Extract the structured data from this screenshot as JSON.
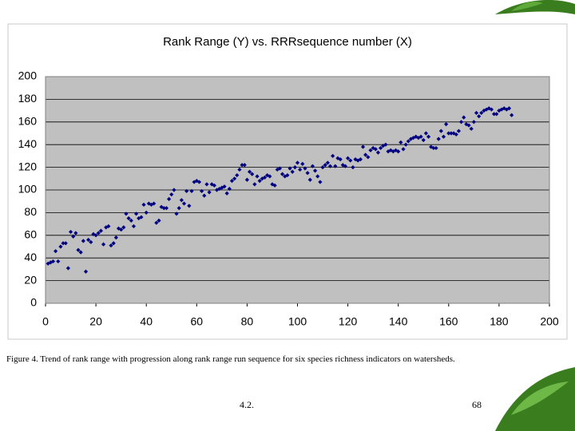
{
  "chart_data": {
    "type": "scatter",
    "title": "Rank Range (Y) vs. RRRsequence number (X)",
    "color": "#000080",
    "grid": true,
    "xlim": [
      0,
      200
    ],
    "xticks": [
      0,
      20,
      40,
      60,
      80,
      100,
      120,
      140,
      160,
      180,
      200
    ],
    "ylim": [
      0,
      200
    ],
    "yticks": [
      0,
      20,
      40,
      60,
      80,
      100,
      120,
      140,
      160,
      180,
      200
    ],
    "x": [
      1,
      2,
      3,
      4,
      5,
      6,
      7,
      8,
      9,
      10,
      11,
      12,
      13,
      14,
      15,
      16,
      17,
      18,
      19,
      20,
      21,
      22,
      23,
      24,
      25,
      26,
      27,
      28,
      29,
      30,
      31,
      32,
      33,
      34,
      35,
      36,
      37,
      38,
      39,
      40,
      41,
      42,
      43,
      44,
      45,
      46,
      47,
      48,
      49,
      50,
      51,
      52,
      53,
      54,
      55,
      56,
      57,
      58,
      59,
      60,
      61,
      62,
      63,
      64,
      65,
      66,
      67,
      68,
      69,
      70,
      71,
      72,
      73,
      74,
      75,
      76,
      77,
      78,
      79,
      80,
      81,
      82,
      83,
      84,
      85,
      86,
      87,
      88,
      89,
      90,
      91,
      92,
      93,
      94,
      95,
      96,
      97,
      98,
      99,
      100,
      101,
      102,
      103,
      104,
      105,
      106,
      107,
      108,
      109,
      110,
      111,
      112,
      113,
      114,
      115,
      116,
      117,
      118,
      119,
      120,
      121,
      122,
      123,
      124,
      125,
      126,
      127,
      128,
      129,
      130,
      131,
      132,
      133,
      134,
      135,
      136,
      137,
      138,
      139,
      140,
      141,
      142,
      143,
      144,
      145,
      146,
      147,
      148,
      149,
      150,
      151,
      152,
      153,
      154,
      155,
      156,
      157,
      158,
      159,
      160,
      161,
      162,
      163,
      164,
      165,
      166,
      167,
      168,
      169,
      170,
      171,
      172,
      173,
      174,
      175,
      176,
      177,
      178,
      179,
      180,
      181,
      182,
      183,
      184,
      185
    ],
    "values": [
      35,
      36,
      37,
      46,
      37,
      50,
      53,
      53,
      31,
      63,
      59,
      62,
      47,
      45,
      55,
      28,
      56,
      54,
      61,
      60,
      62,
      64,
      52,
      67,
      68,
      51,
      53,
      58,
      66,
      65,
      67,
      79,
      75,
      73,
      68,
      79,
      75,
      76,
      87,
      80,
      88,
      87,
      88,
      71,
      73,
      85,
      84,
      84,
      92,
      96,
      100,
      79,
      84,
      91,
      88,
      99,
      86,
      99,
      107,
      108,
      107,
      99,
      95,
      105,
      98,
      105,
      104,
      100,
      101,
      102,
      103,
      97,
      101,
      108,
      110,
      113,
      118,
      122,
      122,
      109,
      116,
      114,
      105,
      112,
      108,
      110,
      111,
      113,
      112,
      105,
      104,
      118,
      119,
      114,
      112,
      113,
      119,
      116,
      120,
      124,
      118,
      123,
      119,
      115,
      109,
      121,
      117,
      112,
      107,
      120,
      122,
      124,
      121,
      130,
      121,
      128,
      127,
      122,
      121,
      128,
      126,
      120,
      127,
      126,
      127,
      138,
      131,
      129,
      135,
      137,
      136,
      133,
      137,
      139,
      140,
      134,
      135,
      134,
      135,
      134,
      142,
      136,
      140,
      143,
      145,
      146,
      147,
      146,
      147,
      144,
      150,
      147,
      138,
      137,
      137,
      145,
      152,
      147,
      158,
      150,
      150,
      150,
      149,
      152,
      160,
      164,
      158,
      157,
      154,
      160,
      168,
      165,
      168,
      170,
      171,
      172,
      171,
      167,
      167,
      170,
      171,
      172,
      171,
      172,
      166
    ]
  },
  "caption": "Figure 4.  Trend of rank range with progression along rank range run sequence for six species richness indicators on watersheds.",
  "footer": {
    "section": "4.2.",
    "page": "68"
  }
}
